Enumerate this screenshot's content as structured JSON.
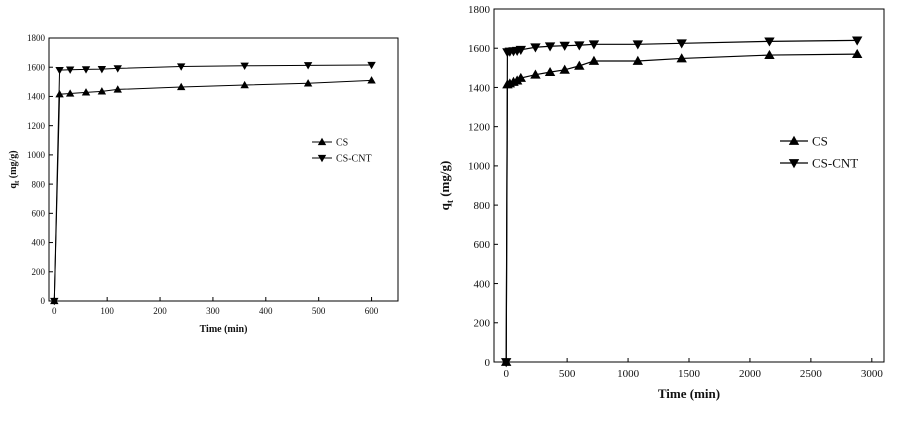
{
  "chart_data": [
    {
      "type": "line",
      "xlabel": "Time (min)",
      "ylabel_main": "q",
      "ylabel_sub": "t",
      "ylabel_unit": "(mg/g)",
      "xlim": [
        -10,
        650
      ],
      "ylim": [
        0,
        1800
      ],
      "xticks": [
        0,
        100,
        200,
        300,
        400,
        500,
        600
      ],
      "yticks": [
        0,
        200,
        400,
        600,
        800,
        1000,
        1200,
        1400,
        1600,
        1800
      ],
      "legend_position": "right",
      "series": [
        {
          "name": "CS",
          "marker": "triangle-up",
          "x": [
            0,
            10,
            30,
            60,
            90,
            120,
            240,
            360,
            480,
            600
          ],
          "y": [
            0,
            1415,
            1420,
            1428,
            1435,
            1448,
            1465,
            1478,
            1490,
            1510
          ]
        },
        {
          "name": "CS-CNT",
          "marker": "triangle-down",
          "x": [
            0,
            10,
            30,
            60,
            90,
            120,
            240,
            360,
            480,
            600
          ],
          "y": [
            0,
            1580,
            1583,
            1585,
            1587,
            1592,
            1605,
            1610,
            1613,
            1615
          ]
        }
      ]
    },
    {
      "type": "line",
      "xlabel": "Time (min)",
      "ylabel_main": "q",
      "ylabel_sub": "t",
      "ylabel_unit": "(mg/g)",
      "xlim": [
        -100,
        3100
      ],
      "ylim": [
        0,
        1800
      ],
      "xticks": [
        0,
        500,
        1000,
        1500,
        2000,
        2500,
        3000
      ],
      "yticks": [
        0,
        200,
        400,
        600,
        800,
        1000,
        1200,
        1400,
        1600,
        1800
      ],
      "legend_position": "right",
      "series": [
        {
          "name": "CS",
          "marker": "triangle-up",
          "x": [
            0,
            10,
            30,
            60,
            90,
            120,
            240,
            360,
            480,
            600,
            720,
            1080,
            1440,
            2160,
            2880
          ],
          "y": [
            0,
            1415,
            1420,
            1428,
            1435,
            1448,
            1465,
            1478,
            1490,
            1510,
            1535,
            1535,
            1548,
            1565,
            1570
          ]
        },
        {
          "name": "CS-CNT",
          "marker": "triangle-down",
          "x": [
            0,
            10,
            30,
            60,
            90,
            120,
            240,
            360,
            480,
            600,
            720,
            1080,
            1440,
            2160,
            2880
          ],
          "y": [
            0,
            1580,
            1583,
            1585,
            1587,
            1592,
            1605,
            1610,
            1613,
            1615,
            1620,
            1620,
            1625,
            1635,
            1640
          ]
        }
      ]
    }
  ]
}
